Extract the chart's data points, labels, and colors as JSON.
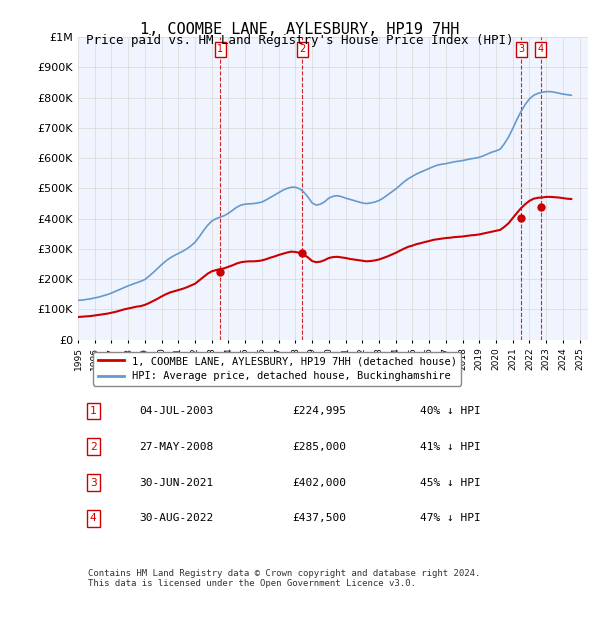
{
  "title": "1, COOMBE LANE, AYLESBURY, HP19 7HH",
  "subtitle": "Price paid vs. HM Land Registry's House Price Index (HPI)",
  "ylabel_ticks": [
    "£0",
    "£100K",
    "£200K",
    "£300K",
    "£400K",
    "£500K",
    "£600K",
    "£700K",
    "£800K",
    "£900K",
    "£1M"
  ],
  "ytick_values": [
    0,
    100000,
    200000,
    300000,
    400000,
    500000,
    600000,
    700000,
    800000,
    900000,
    1000000
  ],
  "ylim": [
    0,
    1000000
  ],
  "xlim_start": 1995.0,
  "xlim_end": 2025.5,
  "background_color": "#ffffff",
  "plot_bg_color": "#f0f4ff",
  "grid_color": "#dddddd",
  "hpi_color": "#6699cc",
  "price_color": "#cc0000",
  "sale_marker_color": "#cc0000",
  "vline_color": "#cc0000",
  "title_fontsize": 11,
  "subtitle_fontsize": 9,
  "transactions": [
    {
      "num": 1,
      "date_num": 2003.5,
      "price": 224995,
      "label": "04-JUL-2003",
      "price_str": "£224,995",
      "pct": "40% ↓ HPI"
    },
    {
      "num": 2,
      "date_num": 2008.4,
      "price": 285000,
      "label": "27-MAY-2008",
      "price_str": "£285,000",
      "pct": "41% ↓ HPI"
    },
    {
      "num": 3,
      "date_num": 2021.5,
      "price": 402000,
      "label": "30-JUN-2021",
      "price_str": "£402,000",
      "pct": "45% ↓ HPI"
    },
    {
      "num": 4,
      "date_num": 2022.67,
      "price": 437500,
      "label": "30-AUG-2022",
      "price_str": "£437,500",
      "pct": "47% ↓ HPI"
    }
  ],
  "legend_line1": "1, COOMBE LANE, AYLESBURY, HP19 7HH (detached house)",
  "legend_line2": "HPI: Average price, detached house, Buckinghamshire",
  "footnote": "Contains HM Land Registry data © Crown copyright and database right 2024.\nThis data is licensed under the Open Government Licence v3.0.",
  "hpi_x": [
    1995.0,
    1995.25,
    1995.5,
    1995.75,
    1996.0,
    1996.25,
    1996.5,
    1996.75,
    1997.0,
    1997.25,
    1997.5,
    1997.75,
    1998.0,
    1998.25,
    1998.5,
    1998.75,
    1999.0,
    1999.25,
    1999.5,
    1999.75,
    2000.0,
    2000.25,
    2000.5,
    2000.75,
    2001.0,
    2001.25,
    2001.5,
    2001.75,
    2002.0,
    2002.25,
    2002.5,
    2002.75,
    2003.0,
    2003.25,
    2003.5,
    2003.75,
    2004.0,
    2004.25,
    2004.5,
    2004.75,
    2005.0,
    2005.25,
    2005.5,
    2005.75,
    2006.0,
    2006.25,
    2006.5,
    2006.75,
    2007.0,
    2007.25,
    2007.5,
    2007.75,
    2008.0,
    2008.25,
    2008.5,
    2008.75,
    2009.0,
    2009.25,
    2009.5,
    2009.75,
    2010.0,
    2010.25,
    2010.5,
    2010.75,
    2011.0,
    2011.25,
    2011.5,
    2011.75,
    2012.0,
    2012.25,
    2012.5,
    2012.75,
    2013.0,
    2013.25,
    2013.5,
    2013.75,
    2014.0,
    2014.25,
    2014.5,
    2014.75,
    2015.0,
    2015.25,
    2015.5,
    2015.75,
    2016.0,
    2016.25,
    2016.5,
    2016.75,
    2017.0,
    2017.25,
    2017.5,
    2017.75,
    2018.0,
    2018.25,
    2018.5,
    2018.75,
    2019.0,
    2019.25,
    2019.5,
    2019.75,
    2020.0,
    2020.25,
    2020.5,
    2020.75,
    2021.0,
    2021.25,
    2021.5,
    2021.75,
    2022.0,
    2022.25,
    2022.5,
    2022.75,
    2023.0,
    2023.25,
    2023.5,
    2023.75,
    2024.0,
    2024.25,
    2024.5
  ],
  "hpi_y": [
    130000,
    131000,
    133000,
    135000,
    138000,
    141000,
    145000,
    149000,
    154000,
    160000,
    166000,
    172000,
    178000,
    183000,
    188000,
    193000,
    199000,
    210000,
    222000,
    235000,
    248000,
    260000,
    270000,
    278000,
    285000,
    292000,
    300000,
    310000,
    322000,
    340000,
    360000,
    378000,
    392000,
    400000,
    405000,
    410000,
    418000,
    428000,
    438000,
    445000,
    448000,
    449000,
    450000,
    452000,
    455000,
    462000,
    470000,
    478000,
    486000,
    494000,
    500000,
    504000,
    504000,
    499000,
    488000,
    472000,
    452000,
    445000,
    448000,
    456000,
    468000,
    474000,
    476000,
    473000,
    468000,
    464000,
    460000,
    456000,
    452000,
    450000,
    452000,
    455000,
    460000,
    468000,
    478000,
    488000,
    498000,
    510000,
    522000,
    532000,
    540000,
    548000,
    554000,
    560000,
    566000,
    572000,
    577000,
    580000,
    582000,
    585000,
    588000,
    590000,
    592000,
    595000,
    598000,
    600000,
    603000,
    608000,
    614000,
    620000,
    624000,
    630000,
    648000,
    670000,
    698000,
    728000,
    755000,
    778000,
    796000,
    808000,
    814000,
    818000,
    820000,
    820000,
    818000,
    815000,
    812000,
    810000,
    808000
  ],
  "price_x": [
    1995.0,
    1995.25,
    1995.5,
    1995.75,
    1996.0,
    1996.25,
    1996.5,
    1996.75,
    1997.0,
    1997.25,
    1997.5,
    1997.75,
    1998.0,
    1998.25,
    1998.5,
    1998.75,
    1999.0,
    1999.25,
    1999.5,
    1999.75,
    2000.0,
    2000.25,
    2000.5,
    2000.75,
    2001.0,
    2001.25,
    2001.5,
    2001.75,
    2002.0,
    2002.25,
    2002.5,
    2002.75,
    2003.0,
    2003.25,
    2003.5,
    2003.75,
    2004.0,
    2004.25,
    2004.5,
    2004.75,
    2005.0,
    2005.25,
    2005.5,
    2005.75,
    2006.0,
    2006.25,
    2006.5,
    2006.75,
    2007.0,
    2007.25,
    2007.5,
    2007.75,
    2008.0,
    2008.25,
    2008.5,
    2008.75,
    2009.0,
    2009.25,
    2009.5,
    2009.75,
    2010.0,
    2010.25,
    2010.5,
    2010.75,
    2011.0,
    2011.25,
    2011.5,
    2011.75,
    2012.0,
    2012.25,
    2012.5,
    2012.75,
    2013.0,
    2013.25,
    2013.5,
    2013.75,
    2014.0,
    2014.25,
    2014.5,
    2014.75,
    2015.0,
    2015.25,
    2015.5,
    2015.75,
    2016.0,
    2016.25,
    2016.5,
    2016.75,
    2017.0,
    2017.25,
    2017.5,
    2017.75,
    2018.0,
    2018.25,
    2018.5,
    2018.75,
    2019.0,
    2019.25,
    2019.5,
    2019.75,
    2020.0,
    2020.25,
    2020.5,
    2020.75,
    2021.0,
    2021.25,
    2021.5,
    2021.75,
    2022.0,
    2022.25,
    2022.5,
    2022.75,
    2023.0,
    2023.25,
    2023.5,
    2023.75,
    2024.0,
    2024.25,
    2024.5
  ],
  "price_y": [
    75000,
    76000,
    77000,
    78000,
    80000,
    82000,
    84000,
    86000,
    89000,
    92000,
    96000,
    100000,
    103000,
    106000,
    109000,
    111000,
    115000,
    121000,
    128000,
    135000,
    143000,
    150000,
    156000,
    160000,
    164000,
    168000,
    173000,
    179000,
    185000,
    196000,
    207000,
    218000,
    226000,
    230000,
    233000,
    236000,
    241000,
    246000,
    252000,
    256000,
    258000,
    259000,
    259000,
    260000,
    262000,
    266000,
    271000,
    275000,
    280000,
    284000,
    288000,
    291000,
    290000,
    287000,
    281000,
    272000,
    260000,
    256000,
    258000,
    263000,
    270000,
    273000,
    274000,
    272000,
    270000,
    267000,
    265000,
    263000,
    261000,
    259000,
    260000,
    262000,
    265000,
    270000,
    275000,
    281000,
    287000,
    294000,
    301000,
    307000,
    311000,
    316000,
    319000,
    323000,
    326000,
    330000,
    332000,
    334000,
    336000,
    337000,
    339000,
    340000,
    341000,
    343000,
    345000,
    346000,
    348000,
    351000,
    354000,
    357000,
    360000,
    363000,
    373000,
    385000,
    402000,
    419000,
    435000,
    448000,
    459000,
    466000,
    469000,
    470000,
    472000,
    472000,
    471000,
    470000,
    468000,
    466000,
    465000
  ]
}
